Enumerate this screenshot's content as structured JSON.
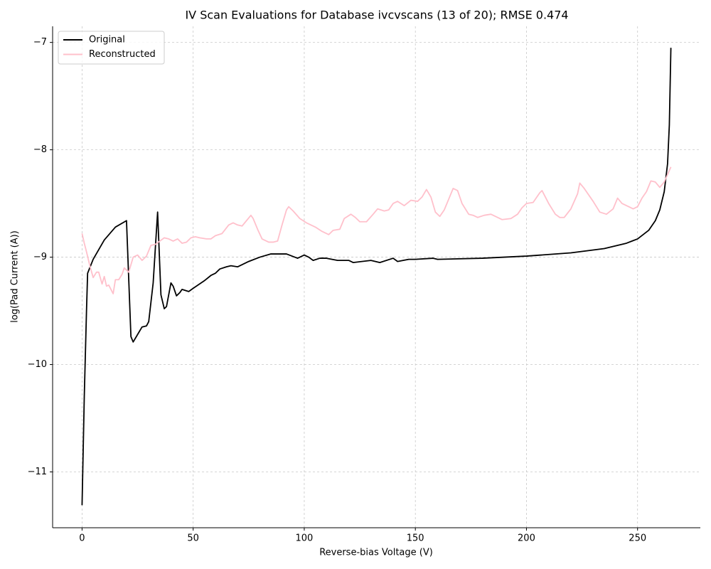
{
  "chart_data": {
    "type": "line",
    "title": "IV Scan Evaluations for Database ivcvscans (13 of 20); RMSE 0.474",
    "x_label": "Reverse-bias Voltage (V)",
    "y_label": "log(Pad Current (A))",
    "xlim": [
      -13.25,
      278.25
    ],
    "ylim": [
      -11.52,
      -6.85
    ],
    "xticks": [
      0,
      50,
      100,
      150,
      200,
      250
    ],
    "yticks": [
      {
        "value": -11,
        "label": "−11"
      },
      {
        "value": -10,
        "label": "−10"
      },
      {
        "value": -9,
        "label": "−9"
      },
      {
        "value": -8,
        "label": "−8"
      },
      {
        "value": -7,
        "label": "−7"
      }
    ],
    "grid": true,
    "legend": "upper left",
    "series": [
      {
        "name": "Original",
        "color": "#000000",
        "x": [
          0,
          1,
          2,
          2.5,
          5,
          10,
          15,
          20,
          22,
          23,
          25,
          27,
          29,
          30,
          32,
          34,
          35.5,
          37,
          38,
          40,
          41,
          42.5,
          44,
          45,
          48,
          50,
          55,
          58,
          60,
          62,
          65,
          67,
          70,
          75,
          80,
          85,
          87,
          92,
          97,
          100,
          102,
          104,
          107,
          110,
          115,
          120,
          122,
          130,
          134,
          140,
          142,
          147,
          150,
          158,
          160,
          180,
          200,
          220,
          235,
          245,
          250,
          255,
          258,
          260,
          262,
          263.5,
          264.3,
          265
        ],
        "values": [
          -11.31,
          -10.3,
          -9.5,
          -9.15,
          -9.02,
          -8.84,
          -8.72,
          -8.66,
          -9.74,
          -9.79,
          -9.72,
          -9.65,
          -9.64,
          -9.6,
          -9.24,
          -8.58,
          -9.35,
          -9.48,
          -9.46,
          -9.24,
          -9.27,
          -9.36,
          -9.33,
          -9.3,
          -9.32,
          -9.29,
          -9.22,
          -9.17,
          -9.15,
          -9.11,
          -9.09,
          -9.08,
          -9.09,
          -9.04,
          -9.0,
          -8.97,
          -8.97,
          -8.97,
          -9.01,
          -8.98,
          -9.0,
          -9.03,
          -9.01,
          -9.01,
          -9.03,
          -9.03,
          -9.05,
          -9.03,
          -9.05,
          -9.01,
          -9.04,
          -9.02,
          -9.02,
          -9.01,
          -9.02,
          -9.01,
          -8.99,
          -8.96,
          -8.92,
          -8.87,
          -8.83,
          -8.75,
          -8.66,
          -8.56,
          -8.39,
          -8.13,
          -7.77,
          -7.05
        ]
      },
      {
        "name": "Reconstructed",
        "color": "#ffc0cb",
        "x": [
          0,
          1,
          2,
          3.5,
          5,
          6.5,
          7.5,
          9,
          10,
          11,
          12,
          14,
          15,
          16.5,
          18,
          19,
          21,
          23,
          25,
          27,
          29,
          31,
          33,
          35,
          37,
          39,
          41,
          43,
          45,
          47,
          49,
          51,
          53,
          56,
          58,
          60,
          63,
          66,
          68,
          70,
          72,
          74,
          76,
          77,
          79,
          81,
          84,
          86,
          88,
          90,
          92,
          93,
          95,
          98,
          101,
          103,
          105,
          108,
          111,
          113,
          116,
          118,
          121,
          123,
          125,
          128,
          131,
          133,
          136,
          138,
          140,
          142,
          145,
          148,
          151,
          153,
          155,
          157,
          159,
          161,
          163,
          165,
          167,
          169,
          171,
          174,
          176,
          178,
          181,
          184,
          186,
          189,
          193,
          196,
          198,
          200,
          203,
          206,
          207,
          210,
          213,
          215,
          217,
          220,
          223,
          224,
          226,
          230,
          233,
          236,
          239,
          241,
          243,
          246,
          248,
          250,
          252,
          254,
          256,
          258,
          260,
          262,
          265
        ],
        "values": [
          -8.78,
          -8.87,
          -8.95,
          -9.08,
          -9.19,
          -9.14,
          -9.14,
          -9.25,
          -9.18,
          -9.27,
          -9.26,
          -9.34,
          -9.21,
          -9.21,
          -9.16,
          -9.1,
          -9.14,
          -9.0,
          -8.98,
          -9.03,
          -8.99,
          -8.89,
          -8.88,
          -8.85,
          -8.82,
          -8.83,
          -8.85,
          -8.83,
          -8.87,
          -8.86,
          -8.82,
          -8.81,
          -8.82,
          -8.83,
          -8.83,
          -8.8,
          -8.78,
          -8.7,
          -8.68,
          -8.7,
          -8.71,
          -8.66,
          -8.61,
          -8.64,
          -8.74,
          -8.83,
          -8.86,
          -8.86,
          -8.85,
          -8.7,
          -8.56,
          -8.53,
          -8.57,
          -8.64,
          -8.68,
          -8.7,
          -8.72,
          -8.76,
          -8.79,
          -8.75,
          -8.74,
          -8.64,
          -8.6,
          -8.63,
          -8.67,
          -8.67,
          -8.6,
          -8.55,
          -8.57,
          -8.56,
          -8.5,
          -8.48,
          -8.52,
          -8.47,
          -8.48,
          -8.44,
          -8.37,
          -8.44,
          -8.58,
          -8.62,
          -8.56,
          -8.46,
          -8.36,
          -8.38,
          -8.5,
          -8.6,
          -8.61,
          -8.63,
          -8.61,
          -8.6,
          -8.62,
          -8.65,
          -8.64,
          -8.6,
          -8.54,
          -8.5,
          -8.49,
          -8.4,
          -8.38,
          -8.5,
          -8.6,
          -8.63,
          -8.63,
          -8.55,
          -8.41,
          -8.31,
          -8.36,
          -8.48,
          -8.58,
          -8.6,
          -8.55,
          -8.45,
          -8.5,
          -8.53,
          -8.55,
          -8.53,
          -8.45,
          -8.39,
          -8.29,
          -8.3,
          -8.35,
          -8.3,
          -8.16
        ]
      }
    ]
  }
}
